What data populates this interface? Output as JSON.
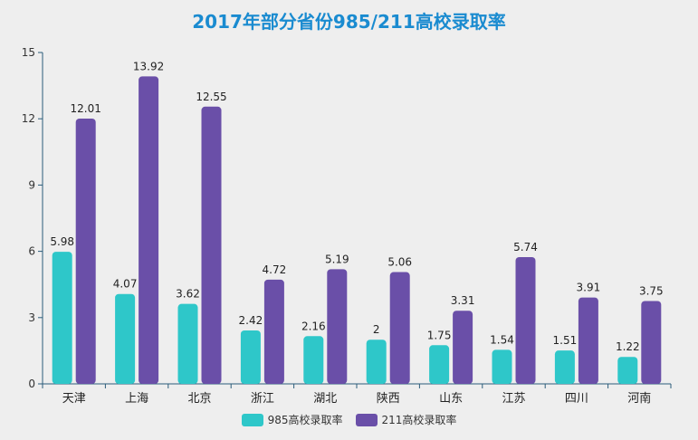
{
  "chart_data": {
    "type": "bar",
    "title": "2017年部分省份985/211高校录取率",
    "categories": [
      "天津",
      "上海",
      "北京",
      "浙江",
      "湖北",
      "陕西",
      "山东",
      "江苏",
      "四川",
      "河南"
    ],
    "series": [
      {
        "name": "985高校录取率",
        "color": "#2ec7c9",
        "values": [
          5.98,
          4.07,
          3.62,
          2.42,
          2.16,
          2,
          1.75,
          1.54,
          1.51,
          1.22
        ]
      },
      {
        "name": "211高校录取率",
        "color": "#6a4fa8",
        "values": [
          12.01,
          13.92,
          12.55,
          4.72,
          5.19,
          5.06,
          3.31,
          5.74,
          3.91,
          3.75
        ]
      }
    ],
    "ylim": [
      0,
      15
    ],
    "yticks": [
      "0",
      "3",
      "6",
      "9",
      "12",
      "15"
    ],
    "grid": false,
    "legend_position": "bottom-center",
    "axis_color": "#2b5c7a"
  }
}
